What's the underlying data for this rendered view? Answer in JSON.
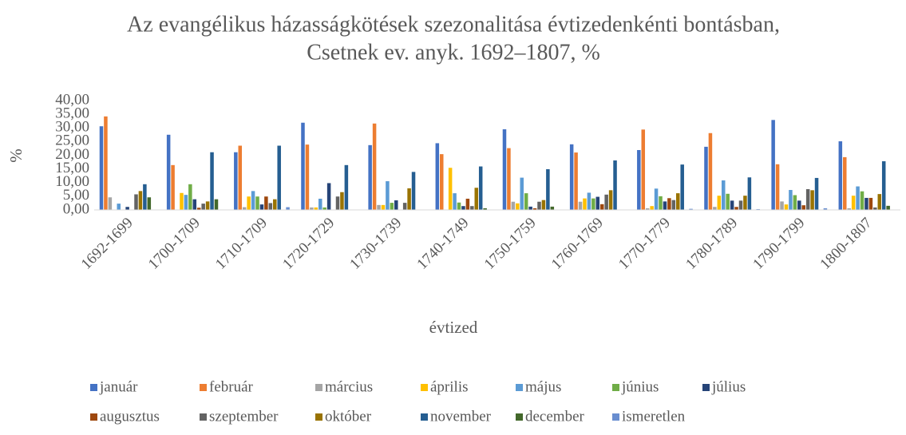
{
  "chart_data": {
    "type": "bar",
    "title": [
      "Az evangélikus házasságkötések szezonalitása évtizedenkénti bontásban,",
      "Csetnek ev. anyk. 1692–1807, %"
    ],
    "x_label": "évtized",
    "y_label": "%",
    "categories": [
      "1692-1699",
      "1700-1709",
      "1710-1709",
      "1720-1729",
      "1730-1739",
      "1740-1749",
      "1750-1759",
      "1760-1769",
      "1770-1779",
      "1780-1789",
      "1790-1799",
      "1800-1807"
    ],
    "ylim": [
      0,
      40
    ],
    "yticks": [
      {
        "value": 0,
        "label": "0,00"
      },
      {
        "value": 5,
        "label": "5,00"
      },
      {
        "value": 10,
        "label": "10,00"
      },
      {
        "value": 15,
        "label": "15,00"
      },
      {
        "value": 20,
        "label": "20,00"
      },
      {
        "value": 25,
        "label": "25,00"
      },
      {
        "value": 30,
        "label": "30,00"
      },
      {
        "value": 35,
        "label": "35,00"
      },
      {
        "value": 40,
        "label": "40,00"
      }
    ],
    "grid": false,
    "legend": "bottom",
    "series": [
      {
        "name": "január",
        "color": "#4472c4",
        "values": [
          30.6,
          27.5,
          21.1,
          31.9,
          23.7,
          24.4,
          29.5,
          24.0,
          21.9,
          23.1,
          32.9,
          25.1
        ]
      },
      {
        "name": "február",
        "color": "#ed7d31",
        "values": [
          34.2,
          16.4,
          23.5,
          23.9,
          31.6,
          20.4,
          22.6,
          21.0,
          29.4,
          28.1,
          16.7,
          19.3
        ]
      },
      {
        "name": "március",
        "color": "#a5a5a5",
        "values": [
          4.6,
          0,
          1.0,
          0.9,
          1.8,
          0,
          3.0,
          3.0,
          0.6,
          1.1,
          3.1,
          0.6
        ]
      },
      {
        "name": "április",
        "color": "#ffc000",
        "values": [
          0,
          6.2,
          4.9,
          0.9,
          1.8,
          15.4,
          2.4,
          4.2,
          1.4,
          5.2,
          2.0,
          5.2
        ]
      },
      {
        "name": "május",
        "color": "#5b9bd5",
        "values": [
          2.3,
          5.5,
          6.9,
          4.1,
          10.5,
          6.1,
          11.8,
          6.3,
          7.8,
          10.8,
          7.3,
          8.6
        ]
      },
      {
        "name": "június",
        "color": "#70ad47",
        "values": [
          0,
          9.4,
          4.9,
          0.9,
          2.6,
          2.7,
          6.1,
          4.2,
          5.0,
          5.9,
          5.4,
          6.8
        ]
      },
      {
        "name": "július",
        "color": "#264478",
        "values": [
          1.1,
          3.9,
          2.0,
          9.8,
          3.5,
          1.4,
          1.2,
          4.8,
          3.1,
          3.4,
          3.4,
          4.4
        ]
      },
      {
        "name": "augusztus",
        "color": "#9e480e",
        "values": [
          0,
          0.8,
          4.9,
          0,
          0,
          4.1,
          0.6,
          2.1,
          4.3,
          1.1,
          1.7,
          4.4
        ]
      },
      {
        "name": "szeptember",
        "color": "#636363",
        "values": [
          5.7,
          2.3,
          2.5,
          4.9,
          2.6,
          1.4,
          3.0,
          5.6,
          3.6,
          3.4,
          7.6,
          0.9
        ]
      },
      {
        "name": "október",
        "color": "#997300",
        "values": [
          6.9,
          3.1,
          3.9,
          6.5,
          7.9,
          8.1,
          3.6,
          7.2,
          6.1,
          5.2,
          7.2,
          5.8
        ]
      },
      {
        "name": "november",
        "color": "#255e91",
        "values": [
          9.4,
          21.1,
          23.5,
          16.4,
          13.9,
          15.9,
          14.9,
          18.1,
          16.6,
          11.9,
          11.7,
          17.8
        ]
      },
      {
        "name": "december",
        "color": "#43682b",
        "values": [
          4.6,
          3.9,
          0,
          0,
          0,
          0.6,
          1.2,
          0,
          0,
          0,
          0,
          1.5
        ]
      },
      {
        "name": "ismeretlen",
        "color": "#698ed0",
        "values": [
          0,
          0,
          1.0,
          0,
          0,
          0,
          0,
          0,
          0.4,
          0.3,
          0.6,
          0
        ]
      }
    ]
  }
}
